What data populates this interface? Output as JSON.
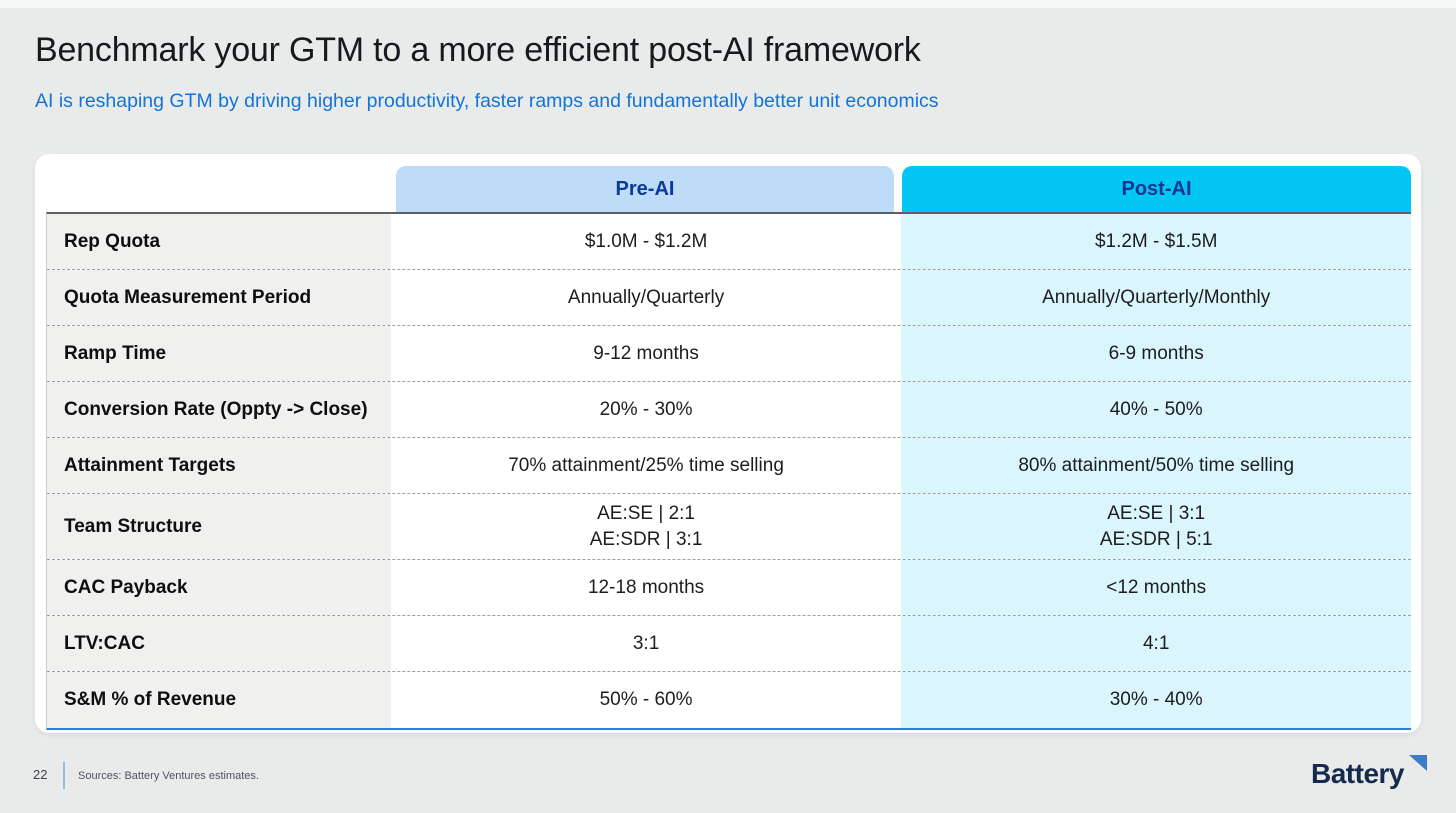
{
  "slide": {
    "title": "Benchmark your GTM to a more efficient post-AI framework",
    "subtitle": "AI is reshaping GTM by driving higher productivity, faster ramps and fundamentally better unit economics"
  },
  "table": {
    "columns": [
      {
        "label": "Pre-AI"
      },
      {
        "label": "Post-AI"
      }
    ],
    "rows": [
      {
        "label": "Rep Quota",
        "pre": "$1.0M - $1.2M",
        "post": "$1.2M - $1.5M"
      },
      {
        "label": "Quota Measurement Period",
        "pre": "Annually/Quarterly",
        "post": "Annually/Quarterly/Monthly"
      },
      {
        "label": "Ramp Time",
        "pre": "9-12 months",
        "post": "6-9 months"
      },
      {
        "label": "Conversion Rate (Oppty -> Close)",
        "pre": "20% - 30%",
        "post": "40% - 50%"
      },
      {
        "label": "Attainment Targets",
        "pre": "70% attainment/25% time selling",
        "post": "80% attainment/50% time selling"
      },
      {
        "label": "Team Structure",
        "pre": "AE:SE | 2:1\nAE:SDR | 3:1",
        "post": "AE:SE | 3:1\nAE:SDR | 5:1"
      },
      {
        "label": "CAC Payback",
        "pre": "12-18 months",
        "post": "<12 months"
      },
      {
        "label": "LTV:CAC",
        "pre": "3:1",
        "post": "4:1"
      },
      {
        "label": "S&M % of Revenue",
        "pre": "50% - 60%",
        "post": "30% - 40%"
      }
    ]
  },
  "footer": {
    "page_number": "22",
    "sources": "Sources: Battery Ventures estimates.",
    "logo_text": "Battery"
  },
  "colors": {
    "background": "#e9ebeb",
    "card_bg": "#ffffff",
    "pre_ai_header_bg": "#bedcf8",
    "pre_ai_header_text": "#0a3a9b",
    "post_ai_header_bg": "#02c6f4",
    "post_ai_header_text": "#12368f",
    "post_ai_column_bg": "#dbf5fc",
    "label_column_bg": "#f0f0ef",
    "subtitle_text": "#1373d8",
    "table_top_rule": "#5d6165",
    "table_bottom_rule": "#2b7de9",
    "logo_navy": "#152a4c",
    "logo_triangle_blue": "#3d7cc9"
  }
}
